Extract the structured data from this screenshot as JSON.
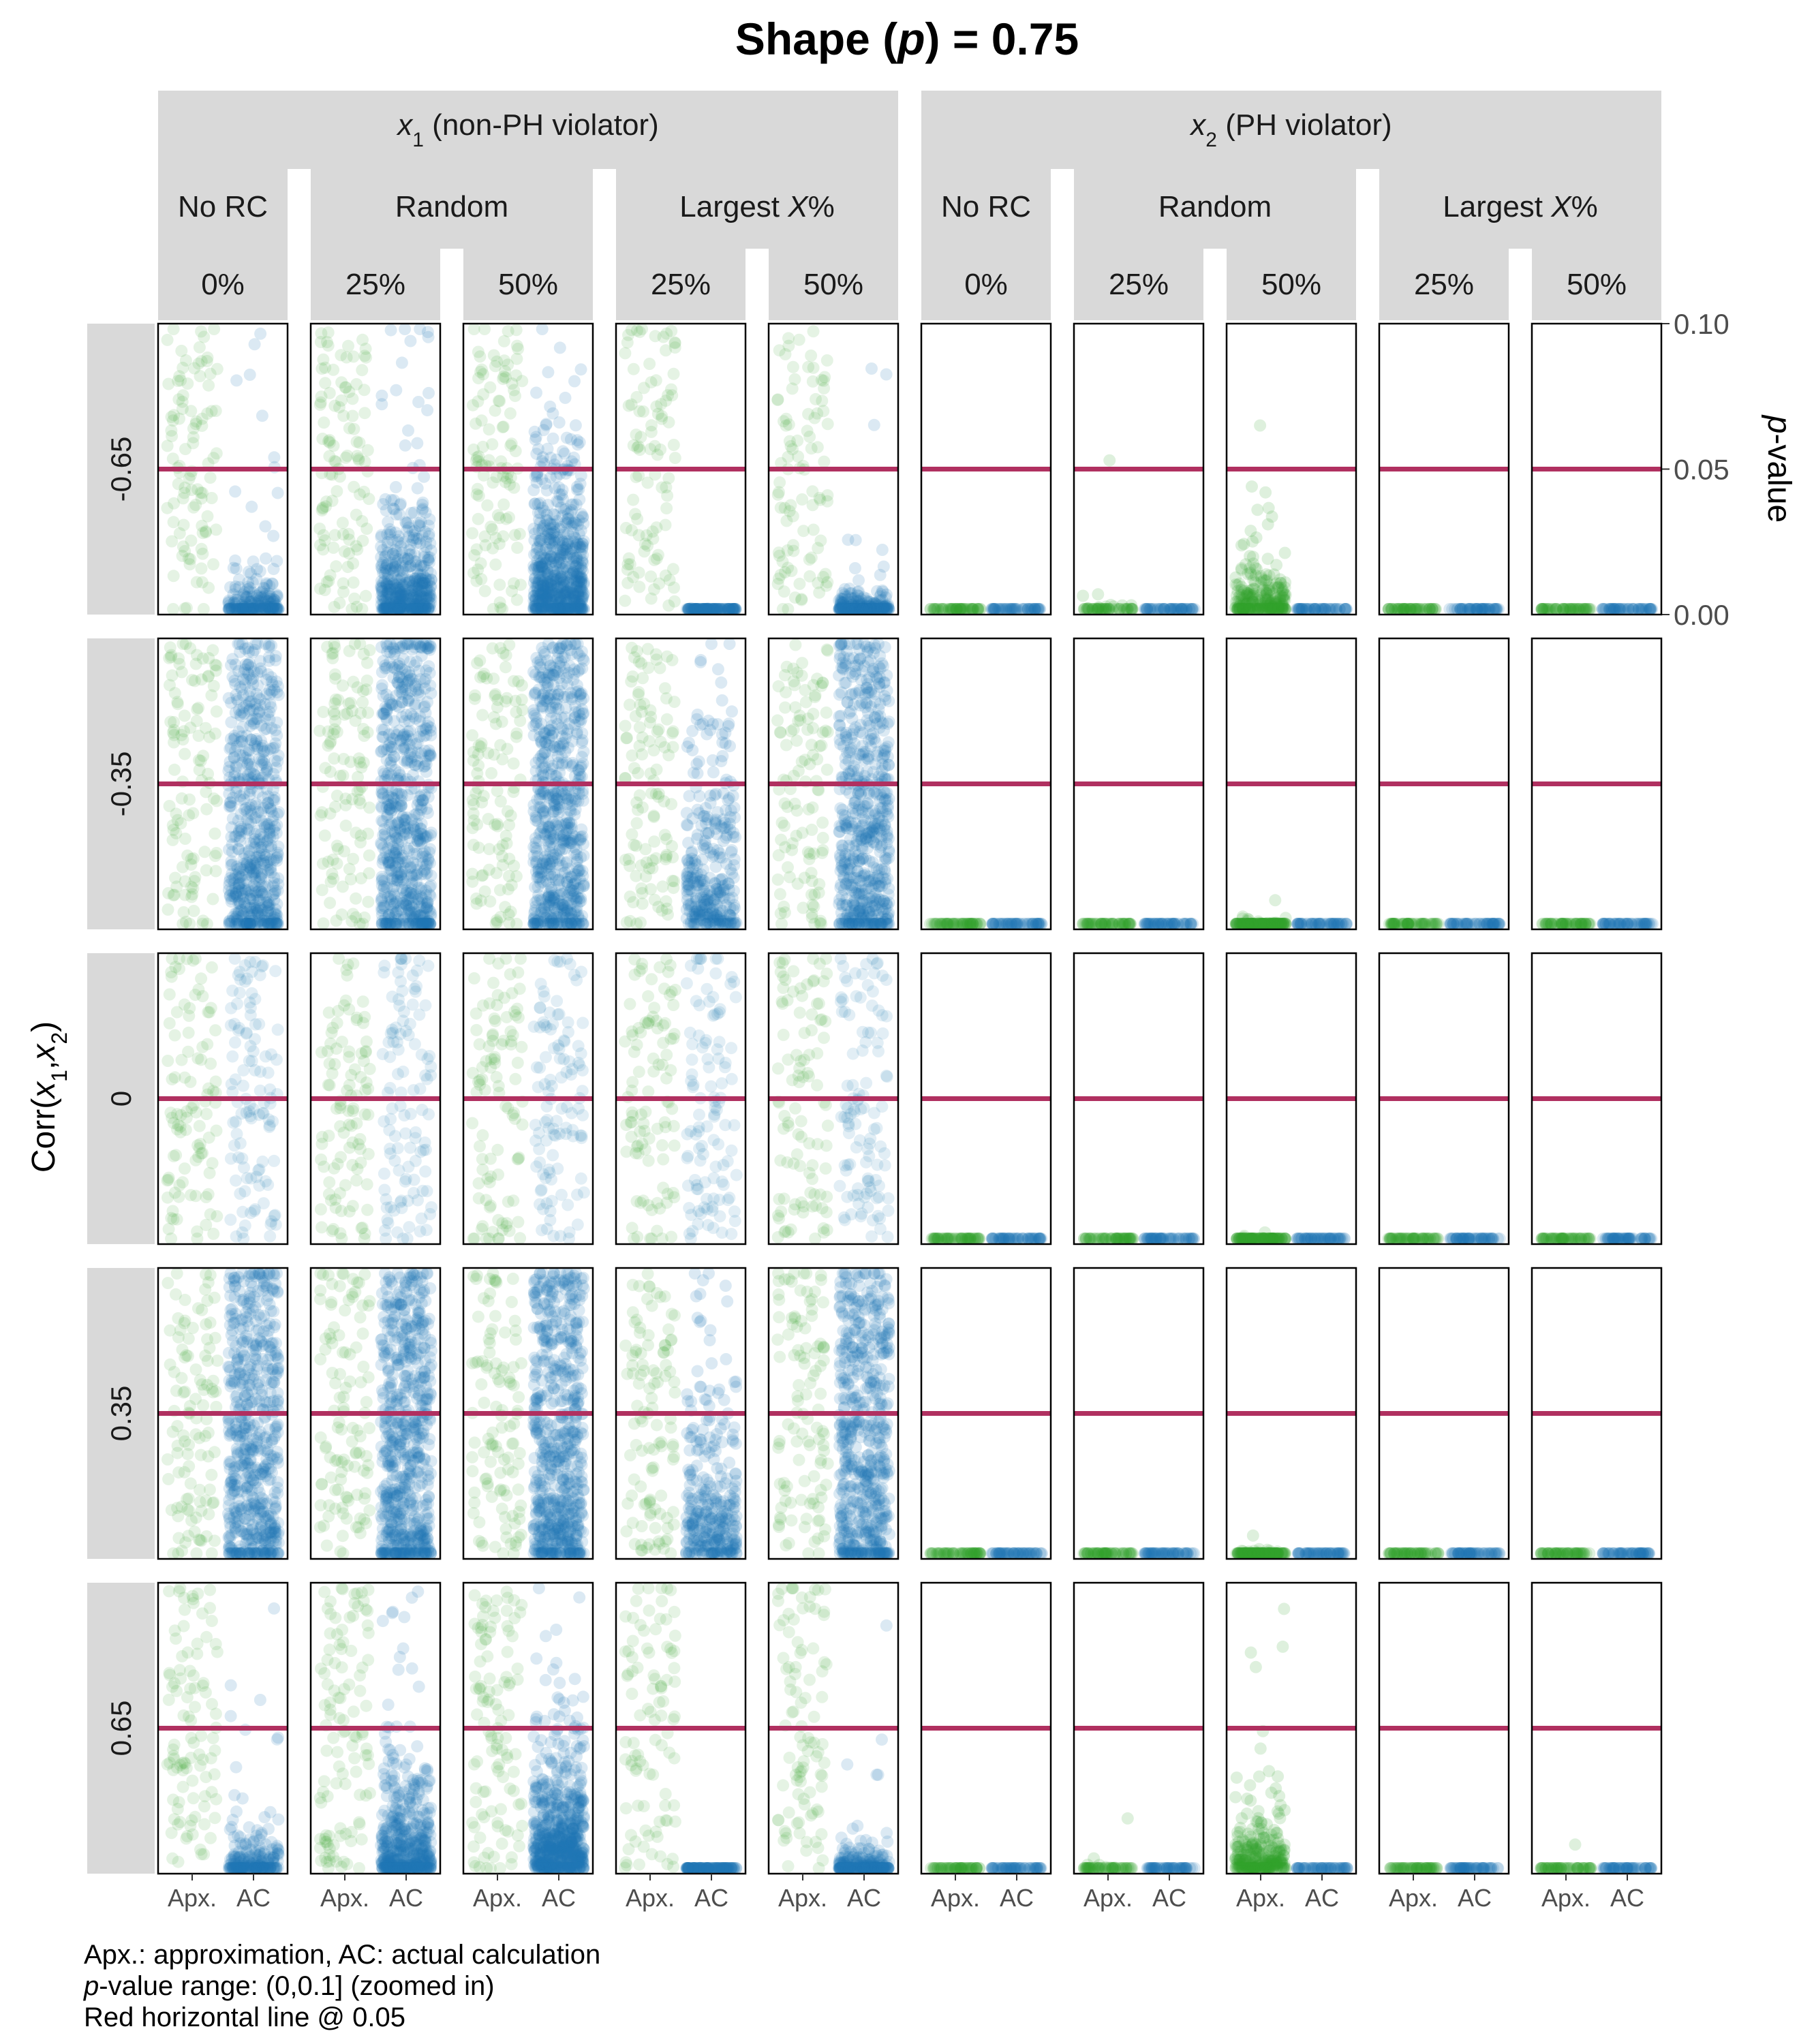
{
  "title": "Shape (p) = 0.75",
  "title_parts": {
    "prefix": "Shape (",
    "italic": "p",
    "suffix": ") = 0.75"
  },
  "y_axis": {
    "label_parts": {
      "italic": "p",
      "rest": "-value"
    },
    "ticks": [
      "0.10",
      "0.05",
      "0.00"
    ],
    "tick_values": [
      0.1,
      0.05,
      0.0
    ],
    "range": [
      0,
      0.1
    ]
  },
  "row_axis": {
    "label_text": "Corr(x1,x2)",
    "rows": [
      "-0.65",
      "-0.35",
      "0",
      "0.35",
      "0.65"
    ]
  },
  "x_ticks": [
    "Apx.",
    "AC"
  ],
  "variables": [
    {
      "name": "x1",
      "label_rest": " (non-PH violator)"
    },
    {
      "name": "x2",
      "label_rest": " (PH violator)"
    }
  ],
  "strategies": [
    {
      "label": "No RC",
      "levels": [
        "0%"
      ]
    },
    {
      "label": "Random",
      "levels": [
        "25%",
        "50%"
      ]
    },
    {
      "label_pre": "Largest ",
      "label_italic": "X",
      "label_post": "%",
      "levels": [
        "25%",
        "50%"
      ]
    }
  ],
  "footnotes": [
    "Apx.: approximation,  AC: actual calculation",
    "-value range: (0,0.1] (zoomed in)",
    "Red horizontal line @ 0.05"
  ],
  "footnote_italic_prefix": "p",
  "colors": {
    "approx": "#33a02c",
    "actual": "#1f78b4",
    "threshold": "#b03060",
    "strip": "#d9d9d9"
  },
  "chart_data": {
    "type": "scatter",
    "title": "Shape (p) = 0.75",
    "ylabel": "p-value",
    "ylim": [
      0,
      0.1
    ],
    "reference_line": 0.05,
    "x_categories": [
      "Apx.",
      "AC"
    ],
    "column_facets": [
      "x1 No RC 0%",
      "x1 Random 25%",
      "x1 Random 50%",
      "x1 Largest X% 25%",
      "x1 Largest X% 50%",
      "x2 No RC 0%",
      "x2 Random 25%",
      "x2 Random 50%",
      "x2 Largest X% 25%",
      "x2 Largest X% 50%"
    ],
    "row_facets": [
      "-0.65",
      "-0.35",
      "0",
      "0.35",
      "0.65"
    ],
    "panels": [
      [
        {
          "apx": {
            "n": 100,
            "dist": "uniform",
            "lo": 0,
            "hi": 0.1
          },
          "ac": {
            "n": 200,
            "dist": "exp",
            "scale": 0.004,
            "sparse": 14
          }
        },
        {
          "apx": {
            "n": 110,
            "dist": "uniform",
            "lo": 0,
            "hi": 0.1
          },
          "ac": {
            "n": 450,
            "dist": "exp",
            "scale": 0.011,
            "sparse": 30
          }
        },
        {
          "apx": {
            "n": 110,
            "dist": "uniform",
            "lo": 0,
            "hi": 0.1
          },
          "ac": {
            "n": 650,
            "dist": "exp",
            "scale": 0.016,
            "sparse": 0
          }
        },
        {
          "apx": {
            "n": 95,
            "dist": "uniform",
            "lo": 0,
            "hi": 0.1
          },
          "ac": {
            "n": 120,
            "dist": "exp",
            "scale": 0.0004,
            "sparse": 0
          }
        },
        {
          "apx": {
            "n": 95,
            "dist": "uniform",
            "lo": 0,
            "hi": 0.1
          },
          "ac": {
            "n": 250,
            "dist": "exp",
            "scale": 0.0025,
            "sparse": 6
          }
        },
        {
          "apx": {
            "n": 60,
            "dist": "exp",
            "scale": 0.0002
          },
          "ac": {
            "n": 60,
            "dist": "exp",
            "scale": 0.0002
          }
        },
        {
          "apx": {
            "n": 60,
            "dist": "exp",
            "scale": 0.0012,
            "outliers": [
              0.053
            ]
          },
          "ac": {
            "n": 60,
            "dist": "exp",
            "scale": 0.0002
          }
        },
        {
          "apx": {
            "n": 260,
            "dist": "exp",
            "scale": 0.006,
            "outliers": [
              0.065,
              0.044,
              0.042,
              0.036,
              0.031
            ]
          },
          "ac": {
            "n": 60,
            "dist": "exp",
            "scale": 0.0002
          }
        },
        {
          "apx": {
            "n": 60,
            "dist": "exp",
            "scale": 0.0002
          },
          "ac": {
            "n": 60,
            "dist": "exp",
            "scale": 0.0002
          }
        },
        {
          "apx": {
            "n": 60,
            "dist": "exp",
            "scale": 0.0003
          },
          "ac": {
            "n": 60,
            "dist": "exp",
            "scale": 0.0002
          }
        }
      ],
      [
        {
          "apx": {
            "n": 110,
            "dist": "uniform",
            "lo": 0,
            "hi": 0.1
          },
          "ac": {
            "n": 600,
            "dist": "uniform-dense",
            "lo": 0,
            "hi": 0.1
          }
        },
        {
          "apx": {
            "n": 110,
            "dist": "uniform",
            "lo": 0,
            "hi": 0.1
          },
          "ac": {
            "n": 650,
            "dist": "uniform-dense",
            "lo": 0,
            "hi": 0.1
          }
        },
        {
          "apx": {
            "n": 110,
            "dist": "uniform",
            "lo": 0,
            "hi": 0.1
          },
          "ac": {
            "n": 650,
            "dist": "uniform-dense",
            "lo": 0,
            "hi": 0.1
          }
        },
        {
          "apx": {
            "n": 110,
            "dist": "uniform",
            "lo": 0,
            "hi": 0.1
          },
          "ac": {
            "n": 300,
            "dist": "exp",
            "scale": 0.02,
            "sparse": 20
          }
        },
        {
          "apx": {
            "n": 110,
            "dist": "uniform",
            "lo": 0,
            "hi": 0.1
          },
          "ac": {
            "n": 600,
            "dist": "uniform-dense",
            "lo": 0,
            "hi": 0.1
          }
        },
        {
          "apx": {
            "n": 60,
            "dist": "exp",
            "scale": 0.0002
          },
          "ac": {
            "n": 60,
            "dist": "exp",
            "scale": 0.0002
          }
        },
        {
          "apx": {
            "n": 60,
            "dist": "exp",
            "scale": 0.0002
          },
          "ac": {
            "n": 60,
            "dist": "exp",
            "scale": 0.0002
          }
        },
        {
          "apx": {
            "n": 150,
            "dist": "exp",
            "scale": 0.0008,
            "outliers": [
              0.01
            ]
          },
          "ac": {
            "n": 60,
            "dist": "exp",
            "scale": 0.0002
          }
        },
        {
          "apx": {
            "n": 60,
            "dist": "exp",
            "scale": 0.0002
          },
          "ac": {
            "n": 60,
            "dist": "exp",
            "scale": 0.0002
          }
        },
        {
          "apx": {
            "n": 60,
            "dist": "exp",
            "scale": 0.0002
          },
          "ac": {
            "n": 60,
            "dist": "exp",
            "scale": 0.0002
          }
        }
      ],
      [
        {
          "apx": {
            "n": 100,
            "dist": "uniform",
            "lo": 0,
            "hi": 0.1
          },
          "ac": {
            "n": 110,
            "dist": "uniform",
            "lo": 0,
            "hi": 0.1
          }
        },
        {
          "apx": {
            "n": 100,
            "dist": "uniform",
            "lo": 0,
            "hi": 0.1
          },
          "ac": {
            "n": 110,
            "dist": "uniform",
            "lo": 0,
            "hi": 0.1
          }
        },
        {
          "apx": {
            "n": 100,
            "dist": "uniform",
            "lo": 0,
            "hi": 0.1
          },
          "ac": {
            "n": 110,
            "dist": "uniform",
            "lo": 0,
            "hi": 0.1
          }
        },
        {
          "apx": {
            "n": 100,
            "dist": "uniform",
            "lo": 0,
            "hi": 0.1
          },
          "ac": {
            "n": 110,
            "dist": "uniform",
            "lo": 0,
            "hi": 0.1
          }
        },
        {
          "apx": {
            "n": 100,
            "dist": "uniform",
            "lo": 0,
            "hi": 0.1
          },
          "ac": {
            "n": 110,
            "dist": "uniform",
            "lo": 0,
            "hi": 0.1
          }
        },
        {
          "apx": {
            "n": 60,
            "dist": "exp",
            "scale": 0.0002
          },
          "ac": {
            "n": 60,
            "dist": "exp",
            "scale": 0.0002
          }
        },
        {
          "apx": {
            "n": 60,
            "dist": "exp",
            "scale": 0.0002
          },
          "ac": {
            "n": 60,
            "dist": "exp",
            "scale": 0.0002
          }
        },
        {
          "apx": {
            "n": 120,
            "dist": "exp",
            "scale": 0.0006,
            "outliers": [
              0.004
            ]
          },
          "ac": {
            "n": 60,
            "dist": "exp",
            "scale": 0.0002
          }
        },
        {
          "apx": {
            "n": 60,
            "dist": "exp",
            "scale": 0.0002
          },
          "ac": {
            "n": 60,
            "dist": "exp",
            "scale": 0.0002
          }
        },
        {
          "apx": {
            "n": 60,
            "dist": "exp",
            "scale": 0.0002
          },
          "ac": {
            "n": 60,
            "dist": "exp",
            "scale": 0.0002
          }
        }
      ],
      [
        {
          "apx": {
            "n": 110,
            "dist": "uniform",
            "lo": 0,
            "hi": 0.1
          },
          "ac": {
            "n": 600,
            "dist": "uniform-dense",
            "lo": 0,
            "hi": 0.1
          }
        },
        {
          "apx": {
            "n": 110,
            "dist": "uniform",
            "lo": 0,
            "hi": 0.1
          },
          "ac": {
            "n": 650,
            "dist": "uniform-dense",
            "lo": 0,
            "hi": 0.1
          }
        },
        {
          "apx": {
            "n": 110,
            "dist": "uniform",
            "lo": 0,
            "hi": 0.1
          },
          "ac": {
            "n": 650,
            "dist": "uniform-dense",
            "lo": 0,
            "hi": 0.1
          }
        },
        {
          "apx": {
            "n": 110,
            "dist": "uniform",
            "lo": 0,
            "hi": 0.1
          },
          "ac": {
            "n": 300,
            "dist": "exp",
            "scale": 0.02,
            "sparse": 20
          }
        },
        {
          "apx": {
            "n": 110,
            "dist": "uniform",
            "lo": 0,
            "hi": 0.1
          },
          "ac": {
            "n": 600,
            "dist": "uniform-dense",
            "lo": 0,
            "hi": 0.1
          }
        },
        {
          "apx": {
            "n": 60,
            "dist": "exp",
            "scale": 0.0002
          },
          "ac": {
            "n": 60,
            "dist": "exp",
            "scale": 0.0002
          }
        },
        {
          "apx": {
            "n": 60,
            "dist": "exp",
            "scale": 0.0002
          },
          "ac": {
            "n": 60,
            "dist": "exp",
            "scale": 0.0002
          }
        },
        {
          "apx": {
            "n": 150,
            "dist": "exp",
            "scale": 0.0008,
            "outliers": [
              0.008
            ]
          },
          "ac": {
            "n": 60,
            "dist": "exp",
            "scale": 0.0002
          }
        },
        {
          "apx": {
            "n": 60,
            "dist": "exp",
            "scale": 0.0002
          },
          "ac": {
            "n": 60,
            "dist": "exp",
            "scale": 0.0002
          }
        },
        {
          "apx": {
            "n": 60,
            "dist": "exp",
            "scale": 0.0002
          },
          "ac": {
            "n": 60,
            "dist": "exp",
            "scale": 0.0002
          }
        }
      ],
      [
        {
          "apx": {
            "n": 100,
            "dist": "uniform",
            "lo": 0,
            "hi": 0.1
          },
          "ac": {
            "n": 200,
            "dist": "exp",
            "scale": 0.004,
            "sparse": 14
          }
        },
        {
          "apx": {
            "n": 110,
            "dist": "uniform",
            "lo": 0,
            "hi": 0.1
          },
          "ac": {
            "n": 450,
            "dist": "exp",
            "scale": 0.011,
            "sparse": 30
          }
        },
        {
          "apx": {
            "n": 110,
            "dist": "uniform",
            "lo": 0,
            "hi": 0.1
          },
          "ac": {
            "n": 650,
            "dist": "exp",
            "scale": 0.016,
            "sparse": 0
          }
        },
        {
          "apx": {
            "n": 95,
            "dist": "uniform",
            "lo": 0,
            "hi": 0.1
          },
          "ac": {
            "n": 120,
            "dist": "exp",
            "scale": 0.0004,
            "sparse": 0
          }
        },
        {
          "apx": {
            "n": 95,
            "dist": "uniform",
            "lo": 0,
            "hi": 0.1
          },
          "ac": {
            "n": 250,
            "dist": "exp",
            "scale": 0.0025,
            "sparse": 6
          }
        },
        {
          "apx": {
            "n": 60,
            "dist": "exp",
            "scale": 0.0002
          },
          "ac": {
            "n": 60,
            "dist": "exp",
            "scale": 0.0002
          }
        },
        {
          "apx": {
            "n": 60,
            "dist": "exp",
            "scale": 0.0008,
            "outliers": [
              0.019
            ]
          },
          "ac": {
            "n": 60,
            "dist": "exp",
            "scale": 0.0002
          }
        },
        {
          "apx": {
            "n": 280,
            "dist": "exp",
            "scale": 0.007,
            "outliers": [
              0.091,
              0.078,
              0.076,
              0.071,
              0.049,
              0.043,
              0.033
            ]
          },
          "ac": {
            "n": 60,
            "dist": "exp",
            "scale": 0.0002
          }
        },
        {
          "apx": {
            "n": 60,
            "dist": "exp",
            "scale": 0.0002
          },
          "ac": {
            "n": 60,
            "dist": "exp",
            "scale": 0.0002
          }
        },
        {
          "apx": {
            "n": 60,
            "dist": "exp",
            "scale": 0.0004,
            "outliers": [
              0.01
            ]
          },
          "ac": {
            "n": 60,
            "dist": "exp",
            "scale": 0.0002
          }
        }
      ]
    ]
  }
}
